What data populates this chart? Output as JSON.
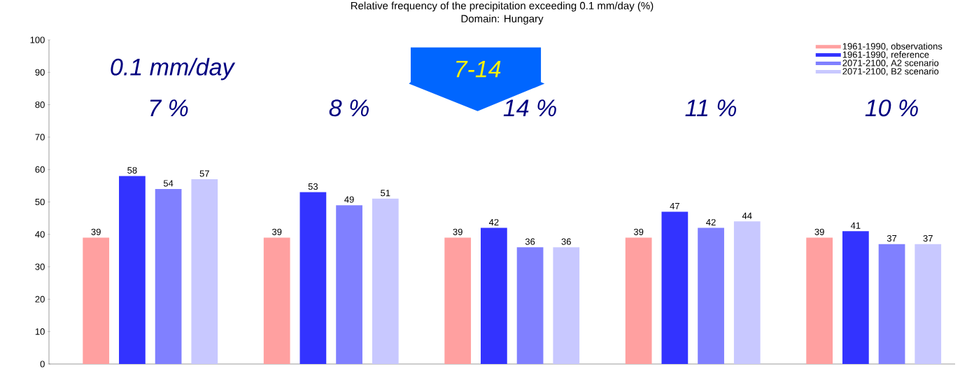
{
  "chart_data": {
    "type": "bar",
    "title": "Relative frequency of the precipitation exceeding 0.1 mm/day (%)",
    "subtitle": "Domain: Hungary",
    "categories": [
      null,
      null,
      null,
      null,
      null
    ],
    "series": [
      {
        "name": "1961-1990, observations",
        "color": "#ffa0a0",
        "values": [
          39,
          39,
          39,
          39,
          39
        ]
      },
      {
        "name": "1961-1990, reference",
        "color": "#3333ff",
        "values": [
          58,
          53,
          42,
          47,
          41
        ]
      },
      {
        "name": "2071-2100, A2 scenario",
        "color": "#8080ff",
        "values": [
          54,
          49,
          36,
          42,
          37
        ]
      },
      {
        "name": "2071-2100, B2 scenario",
        "color": "#c8c8ff",
        "values": [
          57,
          51,
          36,
          44,
          37
        ]
      }
    ],
    "annotations": [
      "0.1 mm/day",
      "7-14",
      "7 %",
      "8 %",
      "14 %",
      "11 %",
      "10 %"
    ],
    "ylim": [
      0,
      100
    ],
    "yticks": [
      0,
      10,
      20,
      30,
      40,
      50,
      60,
      70,
      80,
      90,
      100
    ],
    "data_labels": true,
    "grid": false,
    "legend": "top right"
  }
}
